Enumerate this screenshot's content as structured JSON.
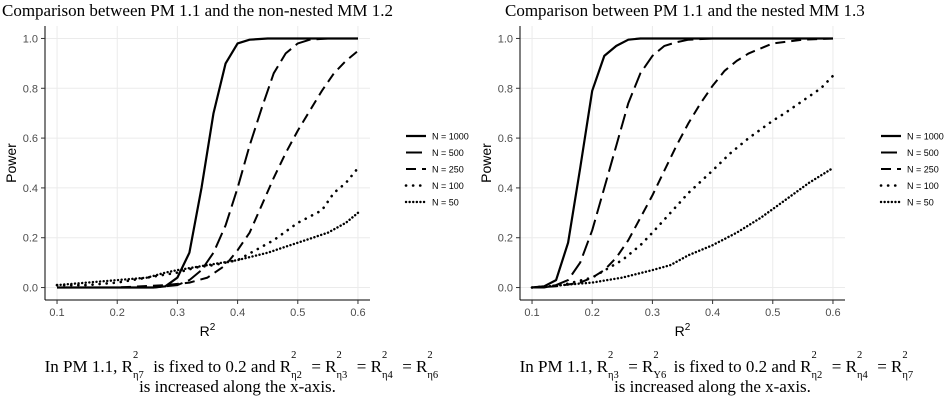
{
  "panels": [
    {
      "title": "Comparison between PM 1.1 and the non-nested MM 1.2",
      "caption": {
        "prefix": "In PM 1.1,",
        "fixed_symbol": {
          "base": "R",
          "sup": "2",
          "sub": "η7"
        },
        "fixed_text": "is fixed to 0.2 and",
        "varied_symbols": [
          {
            "base": "R",
            "sup": "2",
            "sub": "η2"
          },
          {
            "base": "R",
            "sup": "2",
            "sub": "η3"
          },
          {
            "base": "R",
            "sup": "2",
            "sub": "η4"
          },
          {
            "base": "R",
            "sup": "2",
            "sub": "η6"
          }
        ],
        "equals": "=",
        "line2": "is increased along the x-axis."
      }
    },
    {
      "title": "Comparison between PM 1.1 and the nested MM 1.3",
      "caption": {
        "prefix": "In PM 1.1,",
        "fixed_symbols": [
          {
            "base": "R",
            "sup": "2",
            "sub": "η3"
          },
          {
            "base": "R",
            "sup": "2",
            "sub": "Y6"
          }
        ],
        "fixed_text": "is fixed to 0.2 and",
        "varied_symbols": [
          {
            "base": "R",
            "sup": "2",
            "sub": "η2"
          },
          {
            "base": "R",
            "sup": "2",
            "sub": "η4"
          },
          {
            "base": "R",
            "sup": "2",
            "sub": "η7"
          }
        ],
        "equals": "=",
        "line2": "is increased along the x-axis."
      }
    }
  ],
  "chart_data": [
    {
      "type": "line",
      "title": "Comparison between PM 1.1 and the non-nested MM 1.2",
      "xlabel": "R",
      "xlabel_sup": "2",
      "ylabel": "Power",
      "xlim": [
        0.08,
        0.62
      ],
      "ylim": [
        -0.05,
        1.05
      ],
      "xticks": [
        "0.1",
        "0.2",
        "0.3",
        "0.4",
        "0.5",
        "0.6"
      ],
      "yticks": [
        "0.0",
        "0.2",
        "0.4",
        "0.6",
        "0.8",
        "1.0"
      ],
      "grid": true,
      "legend_position": "right",
      "series": [
        {
          "name": "N = 1000",
          "dash": "solid",
          "x": [
            0.1,
            0.2,
            0.26,
            0.28,
            0.3,
            0.32,
            0.34,
            0.36,
            0.38,
            0.4,
            0.42,
            0.45,
            0.5,
            0.55,
            0.6
          ],
          "y": [
            0,
            0,
            0,
            0.005,
            0.04,
            0.14,
            0.4,
            0.7,
            0.9,
            0.98,
            0.995,
            1.0,
            1.0,
            1.0,
            1.0
          ]
        },
        {
          "name": "N = 500",
          "dash": "longdash",
          "x": [
            0.1,
            0.2,
            0.26,
            0.3,
            0.32,
            0.34,
            0.36,
            0.38,
            0.4,
            0.42,
            0.44,
            0.46,
            0.48,
            0.5,
            0.52,
            0.55,
            0.6
          ],
          "y": [
            0,
            0,
            0,
            0.01,
            0.03,
            0.07,
            0.14,
            0.25,
            0.4,
            0.57,
            0.72,
            0.86,
            0.94,
            0.98,
            0.995,
            1.0,
            1.0
          ]
        },
        {
          "name": "N = 250",
          "dash": "dashed",
          "x": [
            0.1,
            0.2,
            0.28,
            0.32,
            0.35,
            0.38,
            0.4,
            0.42,
            0.44,
            0.46,
            0.48,
            0.5,
            0.52,
            0.54,
            0.56,
            0.58,
            0.6
          ],
          "y": [
            0,
            0,
            0.01,
            0.02,
            0.04,
            0.09,
            0.15,
            0.22,
            0.33,
            0.44,
            0.54,
            0.63,
            0.71,
            0.79,
            0.86,
            0.91,
            0.95
          ]
        },
        {
          "name": "N = 100",
          "dash": "dotted",
          "x": [
            0.1,
            0.15,
            0.2,
            0.25,
            0.3,
            0.33,
            0.36,
            0.4,
            0.43,
            0.46,
            0.5,
            0.54,
            0.56,
            0.58,
            0.6
          ],
          "y": [
            0.01,
            0.01,
            0.02,
            0.04,
            0.06,
            0.08,
            0.09,
            0.11,
            0.15,
            0.19,
            0.26,
            0.31,
            0.38,
            0.42,
            0.48
          ]
        },
        {
          "name": "N = 50",
          "dash": "densedot",
          "x": [
            0.1,
            0.15,
            0.2,
            0.25,
            0.28,
            0.3,
            0.35,
            0.4,
            0.45,
            0.5,
            0.55,
            0.58,
            0.6
          ],
          "y": [
            0.01,
            0.02,
            0.03,
            0.04,
            0.06,
            0.07,
            0.09,
            0.11,
            0.14,
            0.18,
            0.22,
            0.26,
            0.3
          ]
        }
      ]
    },
    {
      "type": "line",
      "title": "Comparison between PM 1.1 and the nested MM 1.3",
      "xlabel": "R",
      "xlabel_sup": "2",
      "ylabel": "Power",
      "xlim": [
        0.08,
        0.62
      ],
      "ylim": [
        -0.05,
        1.05
      ],
      "xticks": [
        "0.1",
        "0.2",
        "0.3",
        "0.4",
        "0.5",
        "0.6"
      ],
      "yticks": [
        "0.0",
        "0.2",
        "0.4",
        "0.6",
        "0.8",
        "1.0"
      ],
      "grid": true,
      "legend_position": "right",
      "series": [
        {
          "name": "N = 1000",
          "dash": "solid",
          "x": [
            0.1,
            0.12,
            0.14,
            0.16,
            0.18,
            0.2,
            0.22,
            0.24,
            0.26,
            0.28,
            0.3,
            0.4,
            0.5,
            0.6
          ],
          "y": [
            0,
            0.005,
            0.03,
            0.18,
            0.48,
            0.79,
            0.93,
            0.97,
            0.995,
            1.0,
            1.0,
            1.0,
            1.0,
            1.0
          ]
        },
        {
          "name": "N = 500",
          "dash": "longdash",
          "x": [
            0.1,
            0.12,
            0.14,
            0.16,
            0.18,
            0.2,
            0.22,
            0.24,
            0.26,
            0.28,
            0.3,
            0.32,
            0.34,
            0.36,
            0.4,
            0.5,
            0.6
          ],
          "y": [
            0,
            0,
            0.01,
            0.03,
            0.1,
            0.23,
            0.4,
            0.57,
            0.74,
            0.86,
            0.93,
            0.97,
            0.985,
            0.995,
            1.0,
            1.0,
            1.0
          ]
        },
        {
          "name": "N = 250",
          "dash": "dashed",
          "x": [
            0.1,
            0.14,
            0.18,
            0.2,
            0.22,
            0.24,
            0.26,
            0.28,
            0.3,
            0.32,
            0.34,
            0.36,
            0.38,
            0.4,
            0.42,
            0.44,
            0.46,
            0.48,
            0.5,
            0.55,
            0.6
          ],
          "y": [
            0,
            0.005,
            0.02,
            0.04,
            0.07,
            0.12,
            0.19,
            0.28,
            0.37,
            0.47,
            0.57,
            0.66,
            0.74,
            0.81,
            0.87,
            0.91,
            0.94,
            0.96,
            0.98,
            0.995,
            1.0
          ]
        },
        {
          "name": "N = 100",
          "dash": "dotted",
          "x": [
            0.1,
            0.15,
            0.2,
            0.25,
            0.28,
            0.3,
            0.33,
            0.36,
            0.4,
            0.43,
            0.46,
            0.5,
            0.52,
            0.55,
            0.58,
            0.6
          ],
          "y": [
            0,
            0.01,
            0.04,
            0.11,
            0.17,
            0.22,
            0.3,
            0.38,
            0.47,
            0.54,
            0.6,
            0.67,
            0.7,
            0.75,
            0.8,
            0.85
          ]
        },
        {
          "name": "N = 50",
          "dash": "densedot",
          "x": [
            0.1,
            0.15,
            0.2,
            0.25,
            0.3,
            0.33,
            0.36,
            0.4,
            0.44,
            0.48,
            0.52,
            0.56,
            0.6
          ],
          "y": [
            0,
            0.01,
            0.02,
            0.04,
            0.07,
            0.09,
            0.13,
            0.17,
            0.22,
            0.28,
            0.35,
            0.42,
            0.48
          ]
        }
      ]
    }
  ]
}
